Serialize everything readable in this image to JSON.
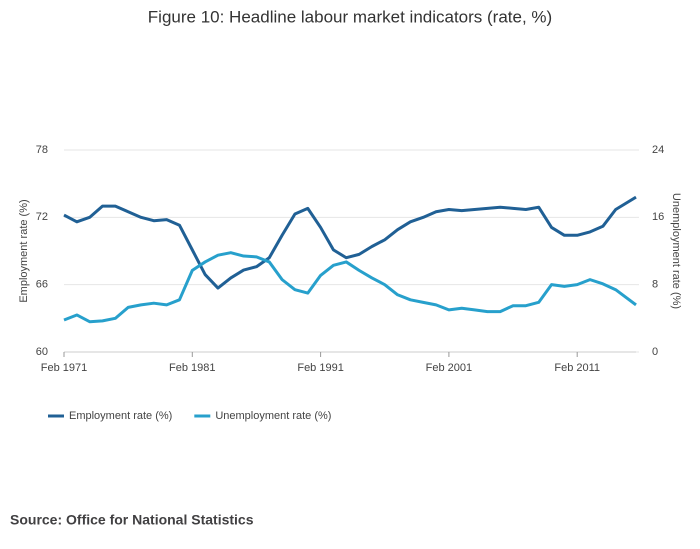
{
  "chart_data": {
    "type": "line",
    "title": "Figure 10: Headline labour market indicators (rate, %)",
    "source": "Source: Office for National Statistics",
    "ylabel": "Employment rate (%)",
    "y2label": "Unemployment rate (%)",
    "x": [
      "1971-02",
      "1972-02",
      "1973-02",
      "1974-02",
      "1975-02",
      "1976-02",
      "1977-02",
      "1978-02",
      "1979-02",
      "1980-02",
      "1981-02",
      "1982-02",
      "1983-02",
      "1984-02",
      "1985-02",
      "1986-02",
      "1987-02",
      "1988-02",
      "1989-02",
      "1990-02",
      "1991-02",
      "1992-02",
      "1993-02",
      "1994-02",
      "1995-02",
      "1996-02",
      "1997-02",
      "1998-02",
      "1999-02",
      "2000-02",
      "2001-02",
      "2002-02",
      "2003-02",
      "2004-02",
      "2005-02",
      "2006-02",
      "2007-02",
      "2008-02",
      "2009-02",
      "2010-02",
      "2011-02",
      "2012-02",
      "2013-02",
      "2014-02",
      "2015-09"
    ],
    "series": [
      {
        "name": "Employment rate (%)",
        "color": "#206095",
        "values": [
          72.2,
          71.6,
          72,
          73,
          73,
          72.5,
          72,
          71.7,
          71.8,
          71.3,
          69.1,
          66.9,
          65.7,
          66.6,
          67.3,
          67.6,
          68.4,
          70.4,
          72.3,
          72.8,
          71.1,
          69.1,
          68.4,
          68.7,
          69.4,
          70,
          70.9,
          71.6,
          72,
          72.5,
          72.7,
          72.6,
          72.7,
          72.8,
          72.9,
          72.8,
          72.7,
          72.9,
          71.1,
          70.4,
          70.4,
          70.7,
          71.2,
          72.7,
          73.8
        ]
      },
      {
        "name": "Unemployment rate (%)",
        "color": "#27a0cc",
        "axis": "y2",
        "values": [
          3.8,
          4.4,
          3.6,
          3.7,
          4,
          5.3,
          5.6,
          5.8,
          5.6,
          6.2,
          9.7,
          10.7,
          11.5,
          11.8,
          11.4,
          11.3,
          10.7,
          8.6,
          7.4,
          7,
          9.1,
          10.3,
          10.7,
          9.7,
          8.8,
          8,
          6.8,
          6.2,
          5.9,
          5.6,
          5,
          5.2,
          5,
          4.8,
          4.8,
          5.5,
          5.5,
          5.9,
          8,
          7.8,
          8,
          8.6,
          8.1,
          7.4,
          5.6
        ]
      }
    ],
    "xlim": [
      "1971-02",
      "2015-09"
    ],
    "xticks": [
      {
        "value": "1971-02",
        "label": "Feb 1971"
      },
      {
        "value": "1981-02",
        "label": "Feb 1981"
      },
      {
        "value": "1991-02",
        "label": "Feb 1991"
      },
      {
        "value": "2001-02",
        "label": "Feb 2001"
      },
      {
        "value": "2011-02",
        "label": "Feb 2011"
      }
    ],
    "ylim": [
      60,
      78
    ],
    "yticks": [
      60,
      66,
      72,
      78
    ],
    "y2lim": [
      0,
      24
    ],
    "y2ticks": [
      0,
      8,
      16,
      24
    ],
    "grid": true,
    "legend": "bottom-left"
  }
}
